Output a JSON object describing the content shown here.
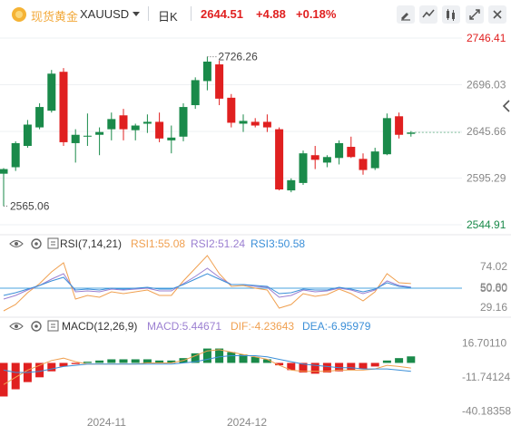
{
  "header": {
    "name": "现货黄金",
    "symbol": "XAUUSD",
    "period": "日K",
    "price": "2644.51",
    "change": "+4.88",
    "change_pct": "+0.18%"
  },
  "colors": {
    "up": "#e02020",
    "down": "#1a8a4a",
    "orange": "#f0a050",
    "purple": "#9b7fd1",
    "blue": "#3b8fd8",
    "accent": "#e02020"
  },
  "icons": [
    "gold-coin-icon",
    "dropdown-caret-icon",
    "draw-tool-icon",
    "indicator-icon",
    "compare-icon",
    "expand-icon",
    "close-icon",
    "eye-icon",
    "settings-icon",
    "collapse-arrow-icon"
  ],
  "rsi_legend": {
    "name": "RSI(7,14,21)",
    "rsi1": "RSI1:55.08",
    "rsi2": "RSI2:51.24",
    "rsi3": "RSI3:50.58"
  },
  "macd_legend": {
    "name": "MACD(12,26,9)",
    "macd": "MACD:5.44671",
    "dif": "DIF:-4.23643",
    "dea": "DEA:-6.95979"
  },
  "chart_data": [
    {
      "type": "candlestick",
      "y_axis_labels": [
        "2746.41",
        "2696.03",
        "2645.66",
        "2595.29",
        "2544.91"
      ],
      "ylim": [
        2544.91,
        2746.41
      ],
      "annotations": {
        "high": "2726.26",
        "low": "2565.06"
      },
      "x_axis_labels": [
        {
          "text": "2024-11",
          "index": 7
        },
        {
          "text": "2024-12",
          "index": 20
        }
      ],
      "candles": [
        {
          "o": 2600,
          "h": 2606,
          "l": 2565.06,
          "c": 2605
        },
        {
          "o": 2607,
          "h": 2635,
          "l": 2603,
          "c": 2633
        },
        {
          "o": 2630,
          "h": 2658,
          "l": 2628,
          "c": 2653
        },
        {
          "o": 2650,
          "h": 2676,
          "l": 2648,
          "c": 2672
        },
        {
          "o": 2668,
          "h": 2712,
          "l": 2666,
          "c": 2708
        },
        {
          "o": 2710,
          "h": 2714,
          "l": 2630,
          "c": 2634
        },
        {
          "o": 2633,
          "h": 2648,
          "l": 2612,
          "c": 2642
        },
        {
          "o": 2640,
          "h": 2665,
          "l": 2630,
          "c": 2641
        },
        {
          "o": 2642,
          "h": 2650,
          "l": 2620,
          "c": 2645
        },
        {
          "o": 2648,
          "h": 2666,
          "l": 2636,
          "c": 2659
        },
        {
          "o": 2663,
          "h": 2670,
          "l": 2636,
          "c": 2648
        },
        {
          "o": 2647,
          "h": 2654,
          "l": 2636,
          "c": 2652
        },
        {
          "o": 2654,
          "h": 2664,
          "l": 2644,
          "c": 2656
        },
        {
          "o": 2656,
          "h": 2666,
          "l": 2634,
          "c": 2638
        },
        {
          "o": 2636,
          "h": 2652,
          "l": 2622,
          "c": 2639
        },
        {
          "o": 2640,
          "h": 2676,
          "l": 2635,
          "c": 2672
        },
        {
          "o": 2674,
          "h": 2704,
          "l": 2670,
          "c": 2701
        },
        {
          "o": 2700,
          "h": 2726.26,
          "l": 2690,
          "c": 2721
        },
        {
          "o": 2718,
          "h": 2722,
          "l": 2674,
          "c": 2681
        },
        {
          "o": 2682,
          "h": 2686,
          "l": 2650,
          "c": 2655
        },
        {
          "o": 2654,
          "h": 2664,
          "l": 2645,
          "c": 2657
        },
        {
          "o": 2656,
          "h": 2660,
          "l": 2650,
          "c": 2652
        },
        {
          "o": 2656,
          "h": 2664,
          "l": 2645,
          "c": 2650
        },
        {
          "o": 2648,
          "h": 2650,
          "l": 2582,
          "c": 2583
        },
        {
          "o": 2582,
          "h": 2595,
          "l": 2580,
          "c": 2593
        },
        {
          "o": 2590,
          "h": 2625,
          "l": 2588,
          "c": 2622
        },
        {
          "o": 2620,
          "h": 2630,
          "l": 2605,
          "c": 2615
        },
        {
          "o": 2612,
          "h": 2620,
          "l": 2607,
          "c": 2618
        },
        {
          "o": 2617,
          "h": 2636,
          "l": 2610,
          "c": 2633
        },
        {
          "o": 2629,
          "h": 2640,
          "l": 2617,
          "c": 2618
        },
        {
          "o": 2616,
          "h": 2622,
          "l": 2599,
          "c": 2604
        },
        {
          "o": 2606,
          "h": 2628,
          "l": 2604,
          "c": 2624
        },
        {
          "o": 2621,
          "h": 2665,
          "l": 2620,
          "c": 2660
        },
        {
          "o": 2662,
          "h": 2666,
          "l": 2638,
          "c": 2642
        },
        {
          "o": 2643,
          "h": 2646,
          "l": 2640,
          "c": 2644.51
        }
      ]
    },
    {
      "type": "line",
      "name": "RSI(7,14,21)",
      "y_axis_labels": [
        "74.02",
        "50.80",
        "50.00",
        "29.16"
      ],
      "ylim": [
        20,
        90
      ],
      "series": [
        {
          "name": "RSI1",
          "values": [
            25,
            32,
            45,
            55,
            68,
            78,
            38,
            42,
            40,
            46,
            44,
            46,
            48,
            42,
            42,
            58,
            72,
            86,
            66,
            52,
            53,
            50,
            48,
            28,
            32,
            44,
            41,
            43,
            49,
            44,
            36,
            46,
            66,
            56,
            55.08
          ]
        },
        {
          "name": "RSI2",
          "values": [
            38,
            42,
            48,
            53,
            60,
            66,
            46,
            47,
            46,
            49,
            48,
            49,
            50,
            47,
            47,
            55,
            63,
            72,
            62,
            54,
            54,
            52,
            51,
            40,
            42,
            48,
            46,
            47,
            50,
            48,
            44,
            48,
            58,
            53,
            51.24
          ]
        },
        {
          "name": "RSI3",
          "values": [
            42,
            45,
            49,
            53,
            58,
            62,
            48,
            49,
            48,
            50,
            49,
            50,
            51,
            49,
            49,
            54,
            60,
            66,
            60,
            54,
            54,
            53,
            52,
            44,
            45,
            49,
            48,
            48,
            51,
            49,
            46,
            49,
            56,
            52,
            50.58
          ]
        }
      ]
    },
    {
      "type": "bar",
      "name": "MACD(12,26,9)",
      "y_axis_labels": [
        "16.70110",
        "-11.74124",
        "-40.18358"
      ],
      "ylim": [
        -42,
        20
      ],
      "macd_hist": [
        -28,
        -22,
        -16,
        -12,
        -7,
        -3,
        -1,
        1,
        2,
        3,
        3,
        3,
        3,
        2,
        2,
        4,
        8,
        12,
        12,
        9,
        7,
        5,
        3,
        -2,
        -6,
        -8,
        -9,
        -8,
        -7,
        -6,
        -5,
        -3,
        2,
        4,
        5.44671
      ],
      "dif": [
        -18,
        -12,
        -6,
        -2,
        2,
        4,
        1,
        -1,
        -1,
        -1,
        -1,
        -1,
        0,
        0,
        0,
        2,
        6,
        10,
        11,
        9,
        7,
        5,
        3,
        -2,
        -6,
        -7,
        -7,
        -7,
        -6,
        -6,
        -6,
        -5,
        -2,
        -3,
        -4.23643
      ],
      "dea": [
        -6,
        -8,
        -8,
        -7,
        -5,
        -3,
        -2,
        -1,
        -1,
        -1,
        -1,
        -1,
        -1,
        -1,
        -1,
        0,
        1,
        3,
        5,
        6,
        6,
        6,
        5,
        3,
        1,
        -1,
        -2,
        -3,
        -4,
        -4,
        -5,
        -5,
        -5,
        -6,
        -6.95979
      ]
    }
  ]
}
